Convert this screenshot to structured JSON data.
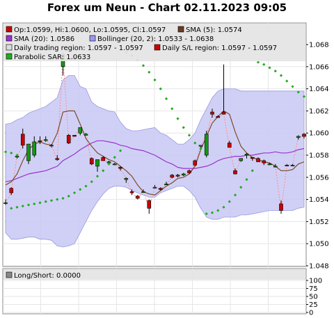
{
  "title": "Forex um Neun - Chart 02.11.2023 09:05",
  "chart_data": {
    "type": "candlestick",
    "ylim": [
      1.048,
      1.069
    ],
    "yticks": [
      "1.048",
      "1.050",
      "1.052",
      "1.054",
      "1.056",
      "1.058",
      "1.060",
      "1.062",
      "1.064",
      "1.066",
      "1.068"
    ],
    "grid": true,
    "candles": [
      {
        "o": 1.0537,
        "h": 1.054,
        "l": 1.0535,
        "c": 1.0537
      },
      {
        "o": 1.055,
        "h": 1.0551,
        "l": 1.0544,
        "c": 1.0546
      },
      {
        "o": 1.0579,
        "h": 1.058,
        "l": 1.0577,
        "c": 1.0579
      },
      {
        "o": 1.0599,
        "h": 1.0604,
        "l": 1.0586,
        "c": 1.0589
      },
      {
        "o": 1.0575,
        "h": 1.059,
        "l": 1.0572,
        "c": 1.059
      },
      {
        "o": 1.058,
        "h": 1.0597,
        "l": 1.0578,
        "c": 1.0592
      },
      {
        "o": 1.0593,
        "h": 1.0597,
        "l": 1.059,
        "c": 1.0593
      },
      {
        "o": 1.0594,
        "h": 1.0597,
        "l": 1.0592,
        "c": 1.0594
      },
      {
        "o": 1.0589,
        "h": 1.059,
        "l": 1.0587,
        "c": 1.0589
      },
      {
        "o": 1.0577,
        "h": 1.058,
        "l": 1.0575,
        "c": 1.0576
      },
      {
        "o": 1.066,
        "h": 1.0673,
        "l": 1.0652,
        "c": 1.0671
      },
      {
        "o": 1.0598,
        "h": 1.0599,
        "l": 1.059,
        "c": 1.0591
      },
      {
        "o": 1.0598,
        "h": 1.0598,
        "l": 1.0597,
        "c": 1.0597
      },
      {
        "o": 1.06,
        "h": 1.0605,
        "l": 1.0598,
        "c": 1.0605
      },
      {
        "o": 1.0598,
        "h": 1.06,
        "l": 1.0598,
        "c": 1.0599
      },
      {
        "o": 1.0577,
        "h": 1.0578,
        "l": 1.0571,
        "c": 1.0572
      },
      {
        "o": 1.057,
        "h": 1.0576,
        "l": 1.0565,
        "c": 1.0576
      },
      {
        "o": 1.0578,
        "h": 1.0579,
        "l": 1.0575,
        "c": 1.0575
      },
      {
        "o": 1.0573,
        "h": 1.0575,
        "l": 1.0572,
        "c": 1.0574
      },
      {
        "o": 1.0572,
        "h": 1.0573,
        "l": 1.0571,
        "c": 1.0572
      },
      {
        "o": 1.0569,
        "h": 1.057,
        "l": 1.0566,
        "c": 1.0568
      },
      {
        "o": 1.0558,
        "h": 1.056,
        "l": 1.0555,
        "c": 1.0559
      },
      {
        "o": 1.0547,
        "h": 1.0549,
        "l": 1.0544,
        "c": 1.0546
      },
      {
        "o": 1.0543,
        "h": 1.0544,
        "l": 1.054,
        "c": 1.0541
      },
      {
        "o": 1.0547,
        "h": 1.0549,
        "l": 1.0546,
        "c": 1.0547
      },
      {
        "o": 1.0539,
        "h": 1.054,
        "l": 1.0527,
        "c": 1.0532
      },
      {
        "o": 1.0551,
        "h": 1.0553,
        "l": 1.055,
        "c": 1.0551
      },
      {
        "o": 1.055,
        "h": 1.0551,
        "l": 1.0548,
        "c": 1.0549
      },
      {
        "o": 1.0554,
        "h": 1.0556,
        "l": 1.0553,
        "c": 1.0554
      },
      {
        "o": 1.0562,
        "h": 1.0563,
        "l": 1.0559,
        "c": 1.056
      },
      {
        "o": 1.0562,
        "h": 1.0563,
        "l": 1.056,
        "c": 1.0561
      },
      {
        "o": 1.0562,
        "h": 1.0564,
        "l": 1.0561,
        "c": 1.0563
      },
      {
        "o": 1.0566,
        "h": 1.0567,
        "l": 1.0563,
        "c": 1.0564
      },
      {
        "o": 1.0575,
        "h": 1.0576,
        "l": 1.057,
        "c": 1.0571
      },
      {
        "o": 1.0588,
        "h": 1.0589,
        "l": 1.0585,
        "c": 1.0589
      },
      {
        "o": 1.058,
        "h": 1.0602,
        "l": 1.0578,
        "c": 1.0599
      },
      {
        "o": 1.0619,
        "h": 1.0622,
        "l": 1.0614,
        "c": 1.0617
      },
      {
        "o": 1.0615,
        "h": 1.0616,
        "l": 1.0614,
        "c": 1.0614
      },
      {
        "o": 1.0619,
        "h": 1.0662,
        "l": 1.0617,
        "c": 1.0617
      },
      {
        "o": 1.0591,
        "h": 1.0593,
        "l": 1.0587,
        "c": 1.0587
      },
      {
        "o": 1.0566,
        "h": 1.0568,
        "l": 1.0563,
        "c": 1.0563
      },
      {
        "o": 1.0575,
        "h": 1.0577,
        "l": 1.0574,
        "c": 1.0577
      },
      {
        "o": 1.058,
        "h": 1.0582,
        "l": 1.0577,
        "c": 1.0581
      },
      {
        "o": 1.0578,
        "h": 1.0578,
        "l": 1.0575,
        "c": 1.0577
      },
      {
        "o": 1.0577,
        "h": 1.0578,
        "l": 1.0574,
        "c": 1.0574
      },
      {
        "o": 1.0575,
        "h": 1.0576,
        "l": 1.0571,
        "c": 1.0573
      },
      {
        "o": 1.0572,
        "h": 1.0573,
        "l": 1.0571,
        "c": 1.0572
      },
      {
        "o": 1.057,
        "h": 1.0572,
        "l": 1.0569,
        "c": 1.057
      },
      {
        "o": 1.0536,
        "h": 1.0539,
        "l": 1.0527,
        "c": 1.053
      },
      {
        "o": 1.0571,
        "h": 1.0572,
        "l": 1.057,
        "c": 1.0571
      },
      {
        "o": 1.0571,
        "h": 1.0572,
        "l": 1.057,
        "c": 1.0571
      },
      {
        "o": 1.0596,
        "h": 1.0598,
        "l": 1.0594,
        "c": 1.0597
      },
      {
        "o": 1.0599,
        "h": 1.06,
        "l": 1.0595,
        "c": 1.0597
      }
    ],
    "sma5": [
      1.0553,
      1.0556,
      1.0563,
      1.0575,
      1.0585,
      1.059,
      1.0592,
      1.059,
      1.0589,
      1.06,
      1.0619,
      1.062,
      1.062,
      1.0608,
      1.0595,
      1.0588,
      1.0582,
      1.0579,
      1.0576,
      1.0574,
      1.057,
      1.0566,
      1.0561,
      1.0553,
      1.0547,
      1.0545,
      1.0544,
      1.0548,
      1.0552,
      1.0555,
      1.0559,
      1.056,
      1.0563,
      1.057,
      1.0585,
      1.0597,
      1.0609,
      1.0615,
      1.062,
      1.0617,
      1.0601,
      1.0588,
      1.0582,
      1.0578,
      1.0576,
      1.0574,
      1.0573,
      1.057,
      1.0566,
      1.0566,
      1.0567,
      1.0572,
      1.0574
    ],
    "sma20": [
      1.0556,
      1.0557,
      1.0559,
      1.0561,
      1.0563,
      1.0564,
      1.0565,
      1.0566,
      1.0568,
      1.057,
      1.0575,
      1.0578,
      1.0581,
      1.0585,
      1.0588,
      1.0591,
      1.0593,
      1.0593,
      1.0592,
      1.0591,
      1.0589,
      1.0588,
      1.0586,
      1.0585,
      1.0584,
      1.0582,
      1.058,
      1.0577,
      1.0574,
      1.0572,
      1.0569,
      1.0568,
      1.0568,
      1.0568,
      1.0569,
      1.057,
      1.0572,
      1.0575,
      1.0577,
      1.0578,
      1.0579,
      1.0579,
      1.058,
      1.058,
      1.0581,
      1.0582,
      1.0582,
      1.0583,
      1.0582,
      1.0582,
      1.0583,
      1.0585,
      1.0586
    ],
    "bollinger_upper": [
      1.0608,
      1.0609,
      1.0612,
      1.0614,
      1.0618,
      1.062,
      1.0622,
      1.0624,
      1.0628,
      1.0632,
      1.0648,
      1.0652,
      1.0652,
      1.0642,
      1.064,
      1.0628,
      1.0624,
      1.0622,
      1.062,
      1.0619,
      1.061,
      1.0604,
      1.0602,
      1.0602,
      1.0603,
      1.0604,
      1.0605,
      1.06,
      1.0598,
      1.0594,
      1.059,
      1.059,
      1.0594,
      1.06,
      1.0612,
      1.0622,
      1.0632,
      1.0638,
      1.064,
      1.064,
      1.064,
      1.0638,
      1.0638,
      1.0638,
      1.0638,
      1.0638,
      1.0638,
      1.0638,
      1.0638,
      1.0638,
      1.0638,
      1.0638,
      1.0638
    ],
    "bollinger_lower": [
      1.051,
      1.0504,
      1.0504,
      1.0505,
      1.0506,
      1.0506,
      1.0504,
      1.0504,
      1.0503,
      1.0498,
      1.0497,
      1.0498,
      1.05,
      1.051,
      1.052,
      1.053,
      1.0538,
      1.0545,
      1.055,
      1.0552,
      1.0552,
      1.0551,
      1.0548,
      1.0546,
      1.0544,
      1.0542,
      1.0542,
      1.0546,
      1.0548,
      1.055,
      1.0552,
      1.0552,
      1.0548,
      1.0542,
      1.0532,
      1.0524,
      1.0522,
      1.0522,
      1.0524,
      1.0524,
      1.0524,
      1.0526,
      1.0526,
      1.0527,
      1.0528,
      1.0529,
      1.053,
      1.053,
      1.053,
      1.053,
      1.053,
      1.0532,
      1.0533
    ],
    "psar": [
      {
        "i": 0,
        "v": 1.0583,
        "c": "green"
      },
      {
        "i": 1,
        "v": 1.0582,
        "c": "green"
      },
      {
        "i": 2,
        "v": 1.058,
        "c": "green"
      },
      {
        "i": 1,
        "v": 1.0532,
        "c": "green"
      },
      {
        "i": 2,
        "v": 1.0533,
        "c": "green"
      },
      {
        "i": 3,
        "v": 1.0534,
        "c": "green"
      },
      {
        "i": 4,
        "v": 1.0535,
        "c": "green"
      },
      {
        "i": 5,
        "v": 1.0536,
        "c": "green"
      },
      {
        "i": 6,
        "v": 1.0537,
        "c": "green"
      },
      {
        "i": 7,
        "v": 1.0538,
        "c": "green"
      },
      {
        "i": 8,
        "v": 1.0539,
        "c": "green"
      },
      {
        "i": 9,
        "v": 1.054,
        "c": "green"
      },
      {
        "i": 10,
        "v": 1.0541,
        "c": "green"
      },
      {
        "i": 11,
        "v": 1.0543,
        "c": "green"
      },
      {
        "i": 12,
        "v": 1.0546,
        "c": "green"
      },
      {
        "i": 13,
        "v": 1.0549,
        "c": "green"
      },
      {
        "i": 14,
        "v": 1.0552,
        "c": "green"
      },
      {
        "i": 15,
        "v": 1.0556,
        "c": "green"
      },
      {
        "i": 16,
        "v": 1.0561,
        "c": "green"
      },
      {
        "i": 17,
        "v": 1.0566,
        "c": "green"
      },
      {
        "i": 18,
        "v": 1.0572,
        "c": "green"
      },
      {
        "i": 19,
        "v": 1.0578,
        "c": "green"
      },
      {
        "i": 20,
        "v": 1.0584,
        "c": "green"
      },
      {
        "i": 21,
        "v": 1.0673,
        "c": "green"
      },
      {
        "i": 22,
        "v": 1.067,
        "c": "green"
      },
      {
        "i": 23,
        "v": 1.0666,
        "c": "green"
      },
      {
        "i": 24,
        "v": 1.0661,
        "c": "green"
      },
      {
        "i": 25,
        "v": 1.0655,
        "c": "green"
      },
      {
        "i": 26,
        "v": 1.0648,
        "c": "green"
      },
      {
        "i": 27,
        "v": 1.064,
        "c": "green"
      },
      {
        "i": 28,
        "v": 1.0631,
        "c": "green"
      },
      {
        "i": 29,
        "v": 1.0622,
        "c": "green"
      },
      {
        "i": 30,
        "v": 1.0613,
        "c": "green"
      },
      {
        "i": 31,
        "v": 1.0605,
        "c": "green"
      },
      {
        "i": 32,
        "v": 1.0598,
        "c": "green"
      },
      {
        "i": 33,
        "v": 1.0591,
        "c": "green"
      },
      {
        "i": 34,
        "v": 1.0586,
        "c": "green"
      },
      {
        "i": 35,
        "v": 1.0527,
        "c": "green"
      },
      {
        "i": 36,
        "v": 1.0528,
        "c": "green"
      },
      {
        "i": 37,
        "v": 1.053,
        "c": "green"
      },
      {
        "i": 38,
        "v": 1.0533,
        "c": "green"
      },
      {
        "i": 39,
        "v": 1.0538,
        "c": "green"
      },
      {
        "i": 40,
        "v": 1.0544,
        "c": "green"
      },
      {
        "i": 41,
        "v": 1.0551,
        "c": "green"
      },
      {
        "i": 42,
        "v": 1.0558,
        "c": "green"
      },
      {
        "i": 43,
        "v": 1.0566,
        "c": "green"
      },
      {
        "i": 44,
        "v": 1.0664,
        "c": "green"
      },
      {
        "i": 45,
        "v": 1.0662,
        "c": "green"
      },
      {
        "i": 46,
        "v": 1.0659,
        "c": "green"
      },
      {
        "i": 47,
        "v": 1.0656,
        "c": "green"
      },
      {
        "i": 48,
        "v": 1.0652,
        "c": "green"
      },
      {
        "i": 49,
        "v": 1.0647,
        "c": "green"
      },
      {
        "i": 50,
        "v": 1.0642,
        "c": "green"
      },
      {
        "i": 51,
        "v": 1.0637,
        "c": "green"
      },
      {
        "i": 52,
        "v": 1.0633,
        "c": "green"
      }
    ],
    "legend": [
      {
        "label": "Op:1.0599, Hi:1.0600, Lo:1.0595, Cl:1.0597",
        "color": "#cc0000"
      },
      {
        "label": "SMA (5): 1.0574",
        "color": "#6b3a1f"
      },
      {
        "label": "SMA (20): 1.0586",
        "color": "#9933cc"
      },
      {
        "label": "Bollinger (20, 2): 1.0533 - 1.0638",
        "color": "#9999ee"
      },
      {
        "label": "Daily trading region: 1.0597 - 1.0597",
        "color": "#dddddd"
      },
      {
        "label": "Daily S/L region: 1.0597 - 1.0597",
        "color": "#cc0000"
      },
      {
        "label": "Parabolic SAR: 1.0633",
        "color": "#22aa22"
      }
    ],
    "sub_panel": {
      "legend_label": "Long/Short: 0.0000",
      "ylim": [
        0,
        100
      ],
      "yticks": [
        "0",
        "25",
        "50",
        "75",
        "100"
      ]
    }
  },
  "colors": {
    "band_fill": "#c8c8f4",
    "band_edge": "#9999dd",
    "sma20": "#9933cc",
    "sma5": "#7a4a2a",
    "bull": "#119911",
    "bear": "#cc0000",
    "psar": "#22aa22",
    "close_link": "#ff8888"
  }
}
